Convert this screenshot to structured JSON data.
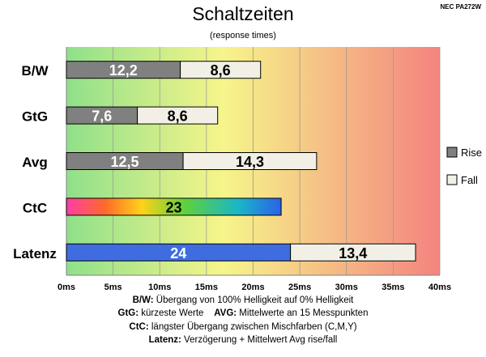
{
  "header": {
    "title": "Schaltzeiten",
    "subtitle": "(response times)",
    "model": "NEC PA272W"
  },
  "colors": {
    "rise": "#808080",
    "fall": "#f2f0e6",
    "latenz_rise": "#3f6de0",
    "gradient_left": "#8fe08a",
    "gradient_mid": "#f6f58a",
    "gradient_right": "#f4837f"
  },
  "chart_data": {
    "type": "bar",
    "orientation": "horizontal",
    "stacked": true,
    "categories": [
      "B/W",
      "GtG",
      "Avg",
      "CtC",
      "Latenz"
    ],
    "series": [
      {
        "name": "Rise",
        "values": [
          12.2,
          7.6,
          12.5,
          23,
          24
        ]
      },
      {
        "name": "Fall",
        "values": [
          8.6,
          8.6,
          14.3,
          null,
          13.4
        ]
      }
    ],
    "bar_labels": [
      [
        "12,2",
        "8,6"
      ],
      [
        "7,6",
        "8,6"
      ],
      [
        "12,5",
        "14,3"
      ],
      [
        "23"
      ],
      [
        "24",
        "13,4"
      ]
    ],
    "x_ticks": [
      "0ms",
      "5ms",
      "10ms",
      "15ms",
      "20ms",
      "25ms",
      "30ms",
      "35ms",
      "40ms"
    ],
    "xlim": [
      0,
      40
    ],
    "grid": true,
    "legend_position": "right",
    "legend": [
      "Rise",
      "Fall"
    ]
  },
  "footnotes": [
    {
      "key": "B/W:",
      "text": " Übergang von 100% Helligkeit auf 0% Helligkeit"
    },
    {
      "key": "GtG:",
      "text": " kürzeste Werte",
      "key2": "AVG:",
      "text2": " Mittelwerte an 15 Messpunkten"
    },
    {
      "key": "CtC:",
      "text": " längster Übergang zwischen Mischfarben (C,M,Y)"
    },
    {
      "key": "Latenz:",
      "text": " Verzögerung + Mittelwert Avg rise/fall"
    }
  ]
}
